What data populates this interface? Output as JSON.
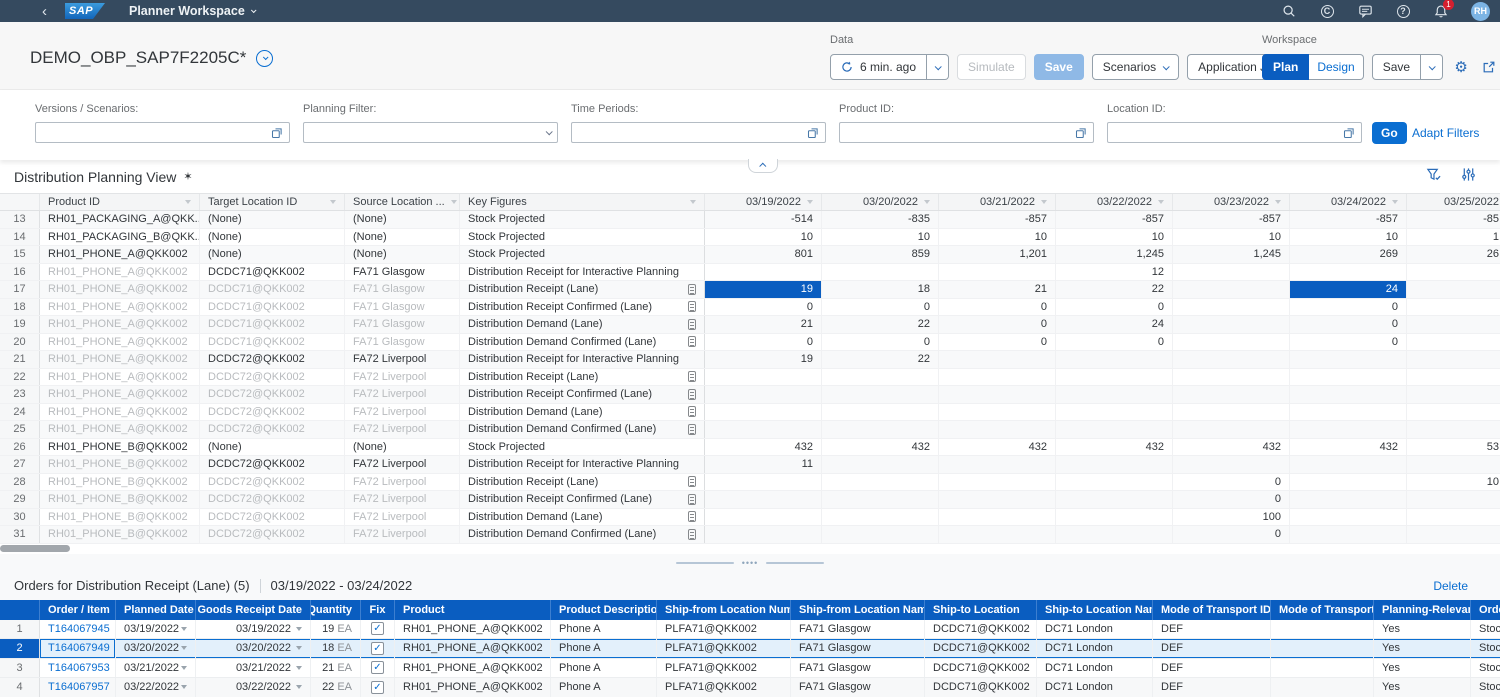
{
  "shell": {
    "app_title": "Planner Workspace",
    "logo_text": "SAP",
    "notification_count": "1",
    "avatar_initials": "RH"
  },
  "header": {
    "title": "DEMO_OBP_SAP7F2205C*"
  },
  "data_toolbar": {
    "label": "Data",
    "refresh_label": "6 min. ago",
    "simulate": "Simulate",
    "save": "Save",
    "scenarios": "Scenarios",
    "application_jobs": "Application Jobs"
  },
  "workspace_toolbar": {
    "label": "Workspace",
    "plan": "Plan",
    "design": "Design",
    "save": "Save"
  },
  "filters": {
    "fields": [
      {
        "label": "Versions / Scenarios:",
        "value": "",
        "control": "valuehelp"
      },
      {
        "label": "Planning Filter:",
        "value": "",
        "control": "select"
      },
      {
        "label": "Time Periods:",
        "value": "",
        "control": "valuehelp"
      },
      {
        "label": "Product ID:",
        "value": "",
        "control": "valuehelp"
      },
      {
        "label": "Location ID:",
        "value": "",
        "control": "valuehelp"
      }
    ],
    "go": "Go",
    "adapt": "Adapt Filters"
  },
  "planning_view": {
    "title": "Distribution Planning View",
    "star": "✶",
    "columns": [
      "Product ID",
      "Target Location ID",
      "Source Location ...",
      "Key Figures"
    ],
    "date_columns": [
      "03/19/2022",
      "03/20/2022",
      "03/21/2022",
      "03/22/2022",
      "03/23/2022",
      "03/24/2022",
      "03/25/2022"
    ],
    "rows": [
      {
        "n": "13",
        "product": {
          "t": "RH01_PACKAGING_A@QKK...",
          "m": false
        },
        "target": {
          "t": "(None)",
          "m": false
        },
        "source": {
          "t": "(None)",
          "m": false
        },
        "kf": "Stock Projected",
        "doc": false,
        "v": [
          "-514",
          "-835",
          "-857",
          "-857",
          "-857",
          "-857",
          "-85"
        ],
        "sel": []
      },
      {
        "n": "14",
        "product": {
          "t": "RH01_PACKAGING_B@QKK...",
          "m": false
        },
        "target": {
          "t": "(None)",
          "m": false
        },
        "source": {
          "t": "(None)",
          "m": false
        },
        "kf": "Stock Projected",
        "doc": false,
        "v": [
          "10",
          "10",
          "10",
          "10",
          "10",
          "10",
          "1"
        ],
        "sel": []
      },
      {
        "n": "15",
        "product": {
          "t": "RH01_PHONE_A@QKK002",
          "m": false
        },
        "target": {
          "t": "(None)",
          "m": false
        },
        "source": {
          "t": "(None)",
          "m": false
        },
        "kf": "Stock Projected",
        "doc": false,
        "v": [
          "801",
          "859",
          "1,201",
          "1,245",
          "1,245",
          "269",
          "26"
        ],
        "sel": []
      },
      {
        "n": "16",
        "product": {
          "t": "RH01_PHONE_A@QKK002",
          "m": true
        },
        "target": {
          "t": "DCDC71@QKK002",
          "m": false
        },
        "source": {
          "t": "FA71 Glasgow",
          "m": false
        },
        "kf": "Distribution Receipt for Interactive Planning",
        "doc": false,
        "v": [
          "",
          "",
          "",
          "12",
          "",
          "",
          ""
        ],
        "sel": []
      },
      {
        "n": "17",
        "product": {
          "t": "RH01_PHONE_A@QKK002",
          "m": true
        },
        "target": {
          "t": "DCDC71@QKK002",
          "m": true
        },
        "source": {
          "t": "FA71 Glasgow",
          "m": true
        },
        "kf": "Distribution Receipt (Lane)",
        "doc": true,
        "v": [
          "19",
          "18",
          "21",
          "22",
          "",
          "24",
          ""
        ],
        "sel": [
          0,
          5
        ]
      },
      {
        "n": "18",
        "product": {
          "t": "RH01_PHONE_A@QKK002",
          "m": true
        },
        "target": {
          "t": "DCDC71@QKK002",
          "m": true
        },
        "source": {
          "t": "FA71 Glasgow",
          "m": true
        },
        "kf": "Distribution Receipt Confirmed (Lane)",
        "doc": true,
        "v": [
          "0",
          "0",
          "0",
          "0",
          "",
          "0",
          ""
        ],
        "sel": []
      },
      {
        "n": "19",
        "product": {
          "t": "RH01_PHONE_A@QKK002",
          "m": true
        },
        "target": {
          "t": "DCDC71@QKK002",
          "m": true
        },
        "source": {
          "t": "FA71 Glasgow",
          "m": true
        },
        "kf": "Distribution Demand (Lane)",
        "doc": true,
        "v": [
          "21",
          "22",
          "0",
          "24",
          "",
          "0",
          ""
        ],
        "sel": []
      },
      {
        "n": "20",
        "product": {
          "t": "RH01_PHONE_A@QKK002",
          "m": true
        },
        "target": {
          "t": "DCDC71@QKK002",
          "m": true
        },
        "source": {
          "t": "FA71 Glasgow",
          "m": true
        },
        "kf": "Distribution Demand Confirmed (Lane)",
        "doc": true,
        "v": [
          "0",
          "0",
          "0",
          "0",
          "",
          "0",
          ""
        ],
        "sel": []
      },
      {
        "n": "21",
        "product": {
          "t": "RH01_PHONE_A@QKK002",
          "m": true
        },
        "target": {
          "t": "DCDC72@QKK002",
          "m": false
        },
        "source": {
          "t": "FA72 Liverpool",
          "m": false
        },
        "kf": "Distribution Receipt for Interactive Planning",
        "doc": false,
        "v": [
          "19",
          "22",
          "",
          "",
          "",
          "",
          ""
        ],
        "sel": []
      },
      {
        "n": "22",
        "product": {
          "t": "RH01_PHONE_A@QKK002",
          "m": true
        },
        "target": {
          "t": "DCDC72@QKK002",
          "m": true
        },
        "source": {
          "t": "FA72 Liverpool",
          "m": true
        },
        "kf": "Distribution Receipt (Lane)",
        "doc": true,
        "v": [
          "",
          "",
          "",
          "",
          "",
          "",
          ""
        ],
        "sel": []
      },
      {
        "n": "23",
        "product": {
          "t": "RH01_PHONE_A@QKK002",
          "m": true
        },
        "target": {
          "t": "DCDC72@QKK002",
          "m": true
        },
        "source": {
          "t": "FA72 Liverpool",
          "m": true
        },
        "kf": "Distribution Receipt Confirmed (Lane)",
        "doc": true,
        "v": [
          "",
          "",
          "",
          "",
          "",
          "",
          ""
        ],
        "sel": []
      },
      {
        "n": "24",
        "product": {
          "t": "RH01_PHONE_A@QKK002",
          "m": true
        },
        "target": {
          "t": "DCDC72@QKK002",
          "m": true
        },
        "source": {
          "t": "FA72 Liverpool",
          "m": true
        },
        "kf": "Distribution Demand (Lane)",
        "doc": true,
        "v": [
          "",
          "",
          "",
          "",
          "",
          "",
          ""
        ],
        "sel": []
      },
      {
        "n": "25",
        "product": {
          "t": "RH01_PHONE_A@QKK002",
          "m": true
        },
        "target": {
          "t": "DCDC72@QKK002",
          "m": true
        },
        "source": {
          "t": "FA72 Liverpool",
          "m": true
        },
        "kf": "Distribution Demand Confirmed (Lane)",
        "doc": true,
        "v": [
          "",
          "",
          "",
          "",
          "",
          "",
          ""
        ],
        "sel": []
      },
      {
        "n": "26",
        "product": {
          "t": "RH01_PHONE_B@QKK002",
          "m": false
        },
        "target": {
          "t": "(None)",
          "m": false
        },
        "source": {
          "t": "(None)",
          "m": false
        },
        "kf": "Stock Projected",
        "doc": false,
        "v": [
          "432",
          "432",
          "432",
          "432",
          "432",
          "432",
          "53"
        ],
        "sel": []
      },
      {
        "n": "27",
        "product": {
          "t": "RH01_PHONE_B@QKK002",
          "m": true
        },
        "target": {
          "t": "DCDC72@QKK002",
          "m": false
        },
        "source": {
          "t": "FA72 Liverpool",
          "m": false
        },
        "kf": "Distribution Receipt for Interactive Planning",
        "doc": false,
        "v": [
          "11",
          "",
          "",
          "",
          "",
          "",
          ""
        ],
        "sel": []
      },
      {
        "n": "28",
        "product": {
          "t": "RH01_PHONE_B@QKK002",
          "m": true
        },
        "target": {
          "t": "DCDC72@QKK002",
          "m": true
        },
        "source": {
          "t": "FA72 Liverpool",
          "m": true
        },
        "kf": "Distribution Receipt (Lane)",
        "doc": true,
        "v": [
          "",
          "",
          "",
          "",
          "0",
          "",
          "10"
        ],
        "sel": []
      },
      {
        "n": "29",
        "product": {
          "t": "RH01_PHONE_B@QKK002",
          "m": true
        },
        "target": {
          "t": "DCDC72@QKK002",
          "m": true
        },
        "source": {
          "t": "FA72 Liverpool",
          "m": true
        },
        "kf": "Distribution Receipt Confirmed (Lane)",
        "doc": true,
        "v": [
          "",
          "",
          "",
          "",
          "0",
          "",
          ""
        ],
        "sel": []
      },
      {
        "n": "30",
        "product": {
          "t": "RH01_PHONE_B@QKK002",
          "m": true
        },
        "target": {
          "t": "DCDC72@QKK002",
          "m": true
        },
        "source": {
          "t": "FA72 Liverpool",
          "m": true
        },
        "kf": "Distribution Demand (Lane)",
        "doc": true,
        "v": [
          "",
          "",
          "",
          "",
          "100",
          "",
          ""
        ],
        "sel": []
      },
      {
        "n": "31",
        "product": {
          "t": "RH01_PHONE_B@QKK002",
          "m": true
        },
        "target": {
          "t": "DCDC72@QKK002",
          "m": true
        },
        "source": {
          "t": "FA72 Liverpool",
          "m": true
        },
        "kf": "Distribution Demand Confirmed (Lane)",
        "doc": true,
        "v": [
          "",
          "",
          "",
          "",
          "0",
          "",
          ""
        ],
        "sel": []
      }
    ]
  },
  "orders": {
    "title": "Orders for Distribution Receipt (Lane) (5)",
    "range": "03/19/2022 - 03/24/2022",
    "delete_label": "Delete",
    "columns": [
      "Order / Item",
      "Planned Date",
      "Goods Receipt Date",
      "Quantity",
      "Fix",
      "Product",
      "Product Description",
      "Ship-from Location Number",
      "Ship-from Location Name",
      "Ship-to Location",
      "Ship-to Location Name",
      "Mode of Transport ID",
      "Mode of Transport",
      "Planning-Relevant",
      "Order Ty"
    ],
    "rows": [
      {
        "n": "1",
        "order": "T164067945",
        "planned": "03/19/2022",
        "gr": "03/19/2022",
        "qty": "19",
        "uom": "EA",
        "fix": true,
        "product": "RH01_PHONE_A@QKK002",
        "desc": "Phone A",
        "sf_num": "PLFA71@QKK002",
        "sf_name": "FA71 Glasgow",
        "st_loc": "DCDC71@QKK002",
        "st_name": "DC71 London",
        "mot_id": "DEF",
        "mot": "",
        "pr": "Yes",
        "otype": "Stock Tr",
        "selected": false
      },
      {
        "n": "2",
        "order": "T164067949",
        "planned": "03/20/2022",
        "gr": "03/20/2022",
        "qty": "18",
        "uom": "EA",
        "fix": true,
        "product": "RH01_PHONE_A@QKK002",
        "desc": "Phone A",
        "sf_num": "PLFA71@QKK002",
        "sf_name": "FA71 Glasgow",
        "st_loc": "DCDC71@QKK002",
        "st_name": "DC71 London",
        "mot_id": "DEF",
        "mot": "",
        "pr": "Yes",
        "otype": "Stock Tr",
        "selected": true
      },
      {
        "n": "3",
        "order": "T164067953",
        "planned": "03/21/2022",
        "gr": "03/21/2022",
        "qty": "21",
        "uom": "EA",
        "fix": true,
        "product": "RH01_PHONE_A@QKK002",
        "desc": "Phone A",
        "sf_num": "PLFA71@QKK002",
        "sf_name": "FA71 Glasgow",
        "st_loc": "DCDC71@QKK002",
        "st_name": "DC71 London",
        "mot_id": "DEF",
        "mot": "",
        "pr": "Yes",
        "otype": "Stock Tr",
        "selected": false
      },
      {
        "n": "4",
        "order": "T164067957",
        "planned": "03/22/2022",
        "gr": "03/22/2022",
        "qty": "22",
        "uom": "EA",
        "fix": true,
        "product": "RH01_PHONE_A@QKK002",
        "desc": "Phone A",
        "sf_num": "PLFA71@QKK002",
        "sf_name": "FA71 Glasgow",
        "st_loc": "DCDC71@QKK002",
        "st_name": "DC71 London",
        "mot_id": "DEF",
        "mot": "",
        "pr": "Yes",
        "otype": "Stock Tr",
        "selected": false
      }
    ]
  }
}
